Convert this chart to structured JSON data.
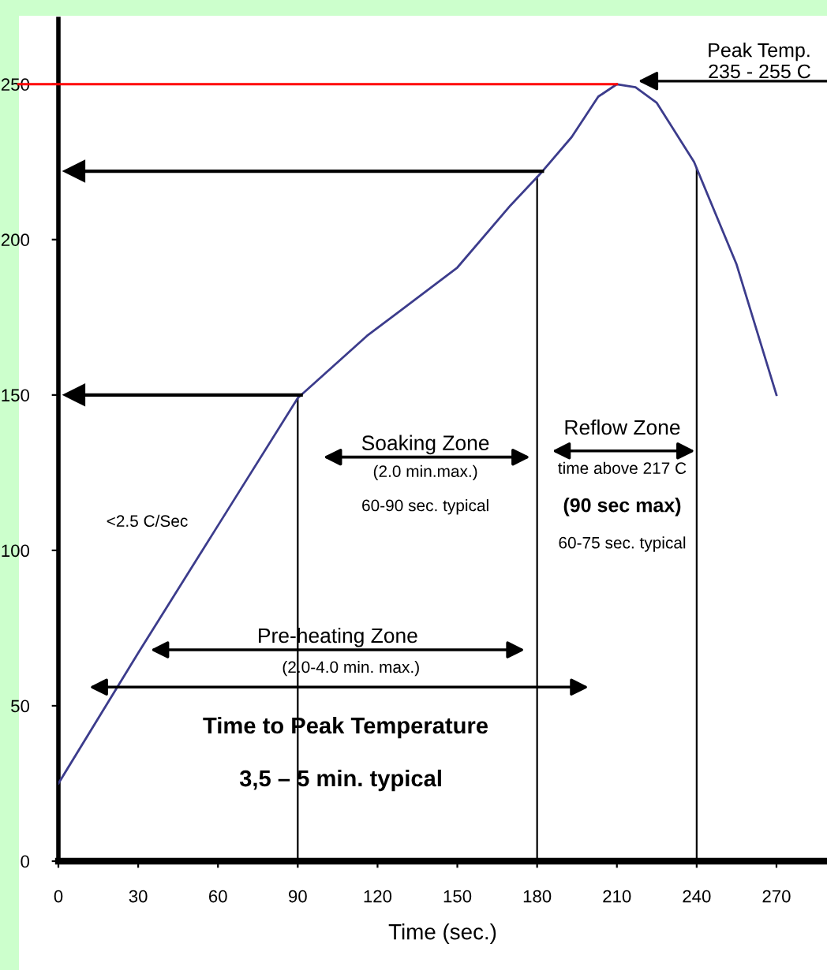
{
  "chart_data": {
    "type": "line",
    "xlabel": "Time (sec.)",
    "x": [
      0,
      30,
      60,
      90,
      116,
      150,
      170,
      181,
      193,
      203,
      210,
      217,
      225,
      239,
      255,
      270
    ],
    "series": [
      {
        "color": "#3c3c8c",
        "values": [
          25,
          67,
          108,
          149,
          169,
          191,
          211,
          221,
          233,
          246,
          250,
          249,
          244,
          225,
          192,
          150
        ]
      }
    ],
    "xlim": [
      0,
      289
    ],
    "ylim": [
      0,
      271
    ],
    "xticks": [
      0,
      30,
      60,
      90,
      120,
      150,
      180,
      210,
      240,
      270
    ],
    "yticks": [
      0,
      50,
      100,
      150,
      200,
      250
    ],
    "grid": false,
    "legend": false,
    "marker": "none",
    "line_style": "solid",
    "ref_lines": [
      {
        "axis": "y",
        "value": 250,
        "color": "#ff0000"
      },
      {
        "axis": "y",
        "value": 222,
        "color": "#000000"
      },
      {
        "axis": "y",
        "value": 150,
        "color": "#000000"
      },
      {
        "axis": "x",
        "value": 90,
        "color": "#000000"
      },
      {
        "axis": "x",
        "value": 180,
        "color": "#000000"
      },
      {
        "axis": "x",
        "value": 240,
        "color": "#000000"
      }
    ],
    "annotations": [
      "Peak Temp.\n235 - 255 C",
      "Soaking Zone",
      "(2.0 min.max.)",
      "60-90 sec. typical",
      "Reflow Zone",
      "time above 217 C",
      "(90 sec max)",
      "60-75 sec. typical",
      "Pre-heating Zone",
      "(2.0-4.0 min. max.)",
      "Time to Peak Temperature",
      "3,5 – 5 min. typical",
      "<2.5 C/Sec"
    ]
  }
}
